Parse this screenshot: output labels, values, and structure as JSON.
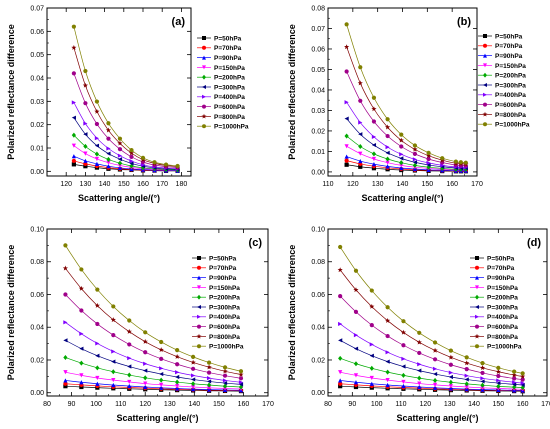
{
  "chart_data": [
    {
      "type": "line",
      "panel_label": "(a)",
      "xlabel": "Scattering angle/(°)",
      "ylabel": "Polarized reflectance difference",
      "xlim": [
        110,
        185
      ],
      "ylim": [
        -0.002,
        0.07
      ],
      "xticks": [
        120,
        130,
        140,
        150,
        160,
        170,
        180
      ],
      "yticks": [
        0.0,
        0.01,
        0.02,
        0.03,
        0.04,
        0.05,
        0.06,
        0.07
      ],
      "ytick_labels": [
        "0.00",
        "0.01",
        "0.02",
        "0.03",
        "0.04",
        "0.05",
        "0.06",
        "0.07"
      ],
      "x": [
        124,
        130,
        136,
        142,
        148,
        154,
        160,
        166,
        172,
        178
      ],
      "legend_placement": "right",
      "series": [
        {
          "name": "P=50hPa",
          "values": [
            0.003,
            0.0022,
            0.0016,
            0.0011,
            0.0008,
            0.0006,
            0.0004,
            0.0003,
            0.0002,
            0.0002
          ]
        },
        {
          "name": "P=70hPa",
          "values": [
            0.0045,
            0.0032,
            0.0023,
            0.0016,
            0.0011,
            0.0008,
            0.0005,
            0.0004,
            0.0003,
            0.0003
          ]
        },
        {
          "name": "P=90hPa",
          "values": [
            0.0065,
            0.0045,
            0.0032,
            0.0022,
            0.0015,
            0.001,
            0.0007,
            0.0005,
            0.0004,
            0.0003
          ]
        },
        {
          "name": "P=150hPa",
          "values": [
            0.011,
            0.0076,
            0.0053,
            0.0037,
            0.0025,
            0.0017,
            0.0011,
            0.0008,
            0.0006,
            0.0005
          ]
        },
        {
          "name": "P=200hPa",
          "values": [
            0.0155,
            0.0107,
            0.0074,
            0.0051,
            0.0035,
            0.0023,
            0.0015,
            0.0011,
            0.0008,
            0.0006
          ]
        },
        {
          "name": "P=300hPa",
          "values": [
            0.023,
            0.0159,
            0.011,
            0.0076,
            0.0052,
            0.0034,
            0.0022,
            0.0015,
            0.0011,
            0.0009
          ]
        },
        {
          "name": "P=400hPa",
          "values": [
            0.0295,
            0.0205,
            0.0142,
            0.0098,
            0.0067,
            0.0044,
            0.0028,
            0.0019,
            0.0014,
            0.0011
          ]
        },
        {
          "name": "P=600hPa",
          "values": [
            0.042,
            0.0292,
            0.0203,
            0.014,
            0.0095,
            0.0062,
            0.004,
            0.0027,
            0.002,
            0.0016
          ]
        },
        {
          "name": "P=800hPa",
          "values": [
            0.053,
            0.0368,
            0.0256,
            0.0176,
            0.012,
            0.0078,
            0.005,
            0.0034,
            0.0025,
            0.002
          ]
        },
        {
          "name": "P=1000hPa",
          "values": [
            0.062,
            0.043,
            0.0299,
            0.0206,
            0.014,
            0.0091,
            0.0058,
            0.0039,
            0.0029,
            0.0023
          ]
        }
      ]
    },
    {
      "type": "line",
      "panel_label": "(b)",
      "xlabel": "Scattering angle/(°)",
      "ylabel": "Polarized reflectance difference",
      "xlim": [
        110,
        170
      ],
      "ylim": [
        -0.002,
        0.08
      ],
      "xticks": [
        110,
        120,
        130,
        140,
        150,
        160,
        170
      ],
      "yticks": [
        0.0,
        0.01,
        0.02,
        0.03,
        0.04,
        0.05,
        0.06,
        0.07,
        0.08
      ],
      "ytick_labels": [
        "0.00",
        "0.01",
        "0.02",
        "0.03",
        "0.04",
        "0.05",
        "0.06",
        "0.07",
        "0.08"
      ],
      "x": [
        117.5,
        123,
        128.5,
        134,
        139.5,
        145,
        150.5,
        156,
        161.5,
        163.5,
        165.5
      ],
      "legend_placement": "right",
      "series": [
        {
          "name": "P=50hPa",
          "values": [
            0.0035,
            0.0025,
            0.0018,
            0.0013,
            0.0009,
            0.0007,
            0.0005,
            0.0004,
            0.0003,
            0.0003,
            0.0003
          ]
        },
        {
          "name": "P=70hPa",
          "values": [
            0.0055,
            0.0039,
            0.0028,
            0.002,
            0.0014,
            0.001,
            0.0008,
            0.0006,
            0.0005,
            0.0005,
            0.0005
          ]
        },
        {
          "name": "P=90hPa",
          "values": [
            0.0075,
            0.0053,
            0.0038,
            0.0027,
            0.0019,
            0.0014,
            0.001,
            0.0008,
            0.0006,
            0.0006,
            0.0006
          ]
        },
        {
          "name": "P=150hPa",
          "values": [
            0.0125,
            0.0089,
            0.0063,
            0.0045,
            0.0032,
            0.0023,
            0.0017,
            0.0013,
            0.001,
            0.001,
            0.001
          ]
        },
        {
          "name": "P=200hPa",
          "values": [
            0.0175,
            0.0124,
            0.0088,
            0.0063,
            0.0045,
            0.0032,
            0.0023,
            0.0017,
            0.0013,
            0.0013,
            0.0013
          ]
        },
        {
          "name": "P=300hPa",
          "values": [
            0.026,
            0.0184,
            0.0131,
            0.0093,
            0.0066,
            0.0047,
            0.0034,
            0.0025,
            0.0019,
            0.0018,
            0.0018
          ]
        },
        {
          "name": "P=400hPa",
          "values": [
            0.034,
            0.0241,
            0.0171,
            0.0121,
            0.0086,
            0.0061,
            0.0044,
            0.0032,
            0.0024,
            0.0023,
            0.0022
          ]
        },
        {
          "name": "P=600hPa",
          "values": [
            0.049,
            0.0347,
            0.0246,
            0.0175,
            0.0124,
            0.0088,
            0.0063,
            0.0046,
            0.0034,
            0.0032,
            0.0031
          ]
        },
        {
          "name": "P=800hPa",
          "values": [
            0.061,
            0.0433,
            0.0307,
            0.0218,
            0.0154,
            0.011,
            0.0079,
            0.0057,
            0.0042,
            0.004,
            0.0038
          ]
        },
        {
          "name": "P=1000hPa",
          "values": [
            0.072,
            0.0511,
            0.0362,
            0.0257,
            0.0182,
            0.0129,
            0.0093,
            0.0067,
            0.005,
            0.0047,
            0.0045
          ]
        }
      ]
    },
    {
      "type": "line",
      "panel_label": "(c)",
      "xlabel": "Scattering angle/(°)",
      "ylabel": "Polarized reflectance difference",
      "xlim": [
        80,
        170
      ],
      "ylim": [
        -0.002,
        0.1
      ],
      "xticks": [
        80,
        90,
        100,
        110,
        120,
        130,
        140,
        150,
        160,
        170
      ],
      "yticks": [
        0.0,
        0.02,
        0.04,
        0.06,
        0.08,
        0.1
      ],
      "ytick_labels": [
        "0.00",
        "0.02",
        "0.04",
        "0.06",
        "0.08",
        "0.10"
      ],
      "x": [
        87.5,
        94,
        100.5,
        107,
        113.5,
        120,
        126.5,
        133,
        139.5,
        146,
        152.5,
        159
      ],
      "legend_placement": "right",
      "series": [
        {
          "name": "P=50hPa",
          "values": [
            0.004,
            0.0035,
            0.0031,
            0.0027,
            0.0024,
            0.0021,
            0.0018,
            0.0016,
            0.0014,
            0.0012,
            0.0011,
            0.001
          ]
        },
        {
          "name": "P=70hPa",
          "values": [
            0.0055,
            0.0048,
            0.0042,
            0.0036,
            0.0032,
            0.0028,
            0.0024,
            0.0021,
            0.0018,
            0.0016,
            0.0014,
            0.0013
          ]
        },
        {
          "name": "P=90hPa",
          "values": [
            0.0075,
            0.0064,
            0.0055,
            0.0047,
            0.0041,
            0.0035,
            0.003,
            0.0026,
            0.0022,
            0.0019,
            0.0017,
            0.0015
          ]
        },
        {
          "name": "P=150hPa",
          "values": [
            0.0125,
            0.0106,
            0.009,
            0.0077,
            0.0066,
            0.0056,
            0.0048,
            0.0041,
            0.0035,
            0.003,
            0.0026,
            0.0023
          ]
        },
        {
          "name": "P=200hPa",
          "values": [
            0.0215,
            0.0181,
            0.0152,
            0.0128,
            0.0108,
            0.0091,
            0.0077,
            0.0065,
            0.0055,
            0.0047,
            0.004,
            0.0035
          ]
        },
        {
          "name": "P=300hPa",
          "values": [
            0.032,
            0.0269,
            0.0226,
            0.019,
            0.016,
            0.0135,
            0.0114,
            0.0096,
            0.0081,
            0.0069,
            0.0059,
            0.0051
          ]
        },
        {
          "name": "P=400hPa",
          "values": [
            0.043,
            0.036,
            0.0301,
            0.0252,
            0.0211,
            0.0177,
            0.0149,
            0.0125,
            0.0105,
            0.0089,
            0.0075,
            0.0064
          ]
        },
        {
          "name": "P=600hPa",
          "values": [
            0.06,
            0.0502,
            0.042,
            0.0352,
            0.0295,
            0.0247,
            0.0207,
            0.0174,
            0.0146,
            0.0123,
            0.0104,
            0.0088
          ]
        },
        {
          "name": "P=800hPa",
          "values": [
            0.076,
            0.0636,
            0.0532,
            0.0445,
            0.0373,
            0.0312,
            0.0262,
            0.022,
            0.0185,
            0.0156,
            0.0131,
            0.0111
          ]
        },
        {
          "name": "P=1000hPa",
          "values": [
            0.09,
            0.0753,
            0.063,
            0.0527,
            0.0441,
            0.0369,
            0.031,
            0.026,
            0.0219,
            0.0184,
            0.0155,
            0.0131
          ]
        }
      ]
    },
    {
      "type": "line",
      "panel_label": "(d)",
      "xlabel": "Scattering angle/(°)",
      "ylabel": "Polarized reflectance difference",
      "xlim": [
        80,
        170
      ],
      "ylim": [
        -0.002,
        0.1
      ],
      "xticks": [
        80,
        90,
        100,
        110,
        120,
        130,
        140,
        150,
        160,
        170
      ],
      "yticks": [
        0.0,
        0.02,
        0.04,
        0.06,
        0.08,
        0.1
      ],
      "ytick_labels": [
        "0.00",
        "0.02",
        "0.04",
        "0.06",
        "0.08",
        "0.10"
      ],
      "x": [
        85,
        91.5,
        98,
        104.5,
        111,
        117.5,
        124,
        130.5,
        137,
        143.5,
        150,
        156.5,
        160
      ],
      "legend_placement": "right",
      "series": [
        {
          "name": "P=50hPa",
          "values": [
            0.004,
            0.0035,
            0.0031,
            0.0027,
            0.0024,
            0.0021,
            0.0018,
            0.0016,
            0.0014,
            0.0012,
            0.0011,
            0.001,
            0.0009
          ]
        },
        {
          "name": "P=70hPa",
          "values": [
            0.0055,
            0.0048,
            0.0042,
            0.0036,
            0.0032,
            0.0028,
            0.0024,
            0.0021,
            0.0018,
            0.0016,
            0.0014,
            0.0013,
            0.0012
          ]
        },
        {
          "name": "P=90hPa",
          "values": [
            0.0075,
            0.0064,
            0.0055,
            0.0047,
            0.0041,
            0.0035,
            0.003,
            0.0026,
            0.0022,
            0.0019,
            0.0017,
            0.0015,
            0.0014
          ]
        },
        {
          "name": "P=150hPa",
          "values": [
            0.0125,
            0.0106,
            0.009,
            0.0077,
            0.0066,
            0.0056,
            0.0048,
            0.0041,
            0.0035,
            0.003,
            0.0026,
            0.0023,
            0.0021
          ]
        },
        {
          "name": "P=200hPa",
          "values": [
            0.021,
            0.0177,
            0.0149,
            0.0126,
            0.0106,
            0.0089,
            0.0075,
            0.0064,
            0.0054,
            0.0046,
            0.0039,
            0.0034,
            0.0031
          ]
        },
        {
          "name": "P=300hPa",
          "values": [
            0.032,
            0.0269,
            0.0226,
            0.019,
            0.016,
            0.0135,
            0.0114,
            0.0096,
            0.0081,
            0.0069,
            0.0059,
            0.0051,
            0.0047
          ]
        },
        {
          "name": "P=400hPa",
          "values": [
            0.042,
            0.0352,
            0.0295,
            0.0247,
            0.0207,
            0.0174,
            0.0146,
            0.0123,
            0.0104,
            0.0088,
            0.0075,
            0.0064,
            0.0059
          ]
        },
        {
          "name": "P=600hPa",
          "values": [
            0.059,
            0.0494,
            0.0413,
            0.0346,
            0.029,
            0.0243,
            0.0204,
            0.0171,
            0.0144,
            0.0121,
            0.0102,
            0.0087,
            0.008
          ]
        },
        {
          "name": "P=800hPa",
          "values": [
            0.075,
            0.0628,
            0.0526,
            0.044,
            0.0368,
            0.0308,
            0.0258,
            0.0216,
            0.0181,
            0.0152,
            0.0128,
            0.0108,
            0.0099
          ]
        },
        {
          "name": "P=1000hPa",
          "values": [
            0.089,
            0.0745,
            0.0624,
            0.0522,
            0.0437,
            0.0366,
            0.0307,
            0.0257,
            0.0216,
            0.0181,
            0.0152,
            0.0129,
            0.0118
          ]
        }
      ]
    }
  ],
  "series_styles": [
    {
      "color": "#000000",
      "marker": "square"
    },
    {
      "color": "#ff0000",
      "marker": "circle"
    },
    {
      "color": "#0000ff",
      "marker": "triangle-up"
    },
    {
      "color": "#ff00ff",
      "marker": "triangle-down"
    },
    {
      "color": "#00aa00",
      "marker": "diamond"
    },
    {
      "color": "#000080",
      "marker": "triangle-left"
    },
    {
      "color": "#8000ff",
      "marker": "triangle-right"
    },
    {
      "color": "#a0008a",
      "marker": "circle"
    },
    {
      "color": "#800000",
      "marker": "star"
    },
    {
      "color": "#808000",
      "marker": "circle"
    }
  ]
}
